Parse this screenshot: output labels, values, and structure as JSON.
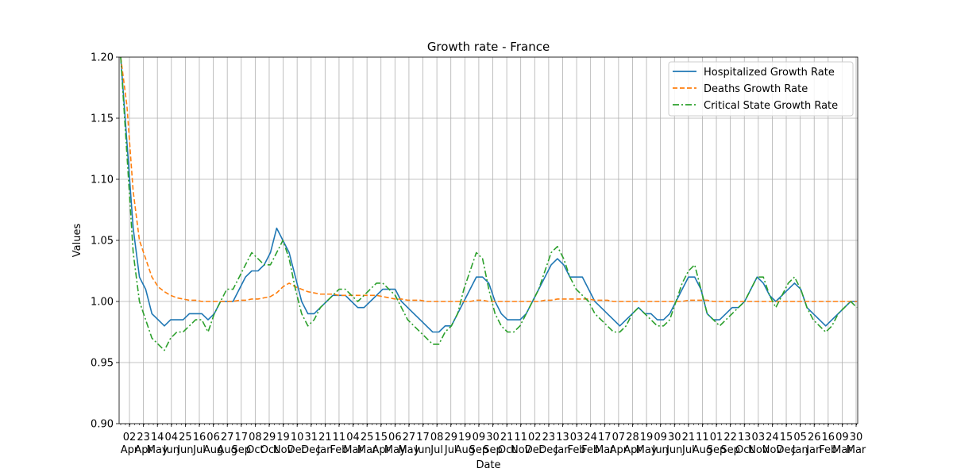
{
  "chart_data": {
    "type": "line",
    "title": "Growth rate - France",
    "xlabel": "Date",
    "ylabel": "Values",
    "ylim": [
      0.9,
      1.2
    ],
    "yticks": [
      "0.90",
      "0.95",
      "1.00",
      "1.05",
      "1.10",
      "1.15",
      "1.20"
    ],
    "grid": true,
    "legend_position": "top-right",
    "x_tick_labels": [
      {
        "day": "02",
        "month": "Apr"
      },
      {
        "day": "23",
        "month": "Apr"
      },
      {
        "day": "14",
        "month": "May"
      },
      {
        "day": "04",
        "month": "Jun"
      },
      {
        "day": "25",
        "month": "Jun"
      },
      {
        "day": "16",
        "month": "Jul"
      },
      {
        "day": "06",
        "month": "Aug"
      },
      {
        "day": "27",
        "month": "Aug"
      },
      {
        "day": "17",
        "month": "Sep"
      },
      {
        "day": "08",
        "month": "Oct"
      },
      {
        "day": "29",
        "month": "Oct"
      },
      {
        "day": "19",
        "month": "Nov"
      },
      {
        "day": "10",
        "month": "Dec"
      },
      {
        "day": "31",
        "month": "Dec"
      },
      {
        "day": "21",
        "month": "Jan"
      },
      {
        "day": "11",
        "month": "Feb"
      },
      {
        "day": "04",
        "month": "Mar"
      },
      {
        "day": "25",
        "month": "Mar"
      },
      {
        "day": "15",
        "month": "Apr"
      },
      {
        "day": "06",
        "month": "May"
      },
      {
        "day": "27",
        "month": "May"
      },
      {
        "day": "17",
        "month": "Jun"
      },
      {
        "day": "08",
        "month": "Jul"
      },
      {
        "day": "29",
        "month": "Jul"
      },
      {
        "day": "19",
        "month": "Aug"
      },
      {
        "day": "09",
        "month": "Sep"
      },
      {
        "day": "30",
        "month": "Sep"
      },
      {
        "day": "21",
        "month": "Oct"
      },
      {
        "day": "11",
        "month": "Nov"
      },
      {
        "day": "02",
        "month": "Dec"
      },
      {
        "day": "23",
        "month": "Dec"
      },
      {
        "day": "13",
        "month": "Jan"
      },
      {
        "day": "03",
        "month": "Feb"
      },
      {
        "day": "24",
        "month": "Feb"
      },
      {
        "day": "17",
        "month": "Mar"
      },
      {
        "day": "07",
        "month": "Apr"
      },
      {
        "day": "28",
        "month": "Apr"
      },
      {
        "day": "19",
        "month": "May"
      },
      {
        "day": "09",
        "month": "Jun"
      },
      {
        "day": "30",
        "month": "Jun"
      },
      {
        "day": "21",
        "month": "Jul"
      },
      {
        "day": "11",
        "month": "Aug"
      },
      {
        "day": "01",
        "month": "Sep"
      },
      {
        "day": "22",
        "month": "Sep"
      },
      {
        "day": "13",
        "month": "Oct"
      },
      {
        "day": "03",
        "month": "Nov"
      },
      {
        "day": "24",
        "month": "Nov"
      },
      {
        "day": "15",
        "month": "Dec"
      },
      {
        "day": "05",
        "month": "Jan"
      },
      {
        "day": "26",
        "month": "Jan"
      },
      {
        "day": "16",
        "month": "Feb"
      },
      {
        "day": "09",
        "month": "Mar"
      },
      {
        "day": "30",
        "month": "Mar"
      }
    ],
    "series": [
      {
        "name": "Hospitalized Growth Rate",
        "color": "#1f77b4",
        "dash": "solid",
        "values": [
          1.2,
          1.13,
          1.06,
          1.02,
          1.01,
          0.99,
          0.985,
          0.98,
          0.985,
          0.985,
          0.985,
          0.99,
          0.99,
          0.99,
          0.985,
          0.99,
          1.0,
          1.0,
          1.0,
          1.01,
          1.02,
          1.025,
          1.025,
          1.03,
          1.04,
          1.06,
          1.05,
          1.04,
          1.02,
          1.0,
          0.99,
          0.99,
          0.995,
          1.0,
          1.005,
          1.005,
          1.005,
          1.0,
          0.995,
          0.995,
          1.0,
          1.005,
          1.01,
          1.01,
          1.01,
          1.0,
          0.995,
          0.99,
          0.985,
          0.98,
          0.975,
          0.975,
          0.98,
          0.98,
          0.99,
          1.0,
          1.01,
          1.02,
          1.02,
          1.015,
          1.0,
          0.99,
          0.985,
          0.985,
          0.985,
          0.99,
          1.0,
          1.01,
          1.02,
          1.03,
          1.035,
          1.03,
          1.02,
          1.02,
          1.02,
          1.01,
          1.0,
          0.995,
          0.99,
          0.985,
          0.98,
          0.985,
          0.99,
          0.995,
          0.99,
          0.99,
          0.985,
          0.985,
          0.99,
          1.0,
          1.01,
          1.02,
          1.02,
          1.01,
          0.99,
          0.985,
          0.985,
          0.99,
          0.995,
          0.995,
          1.0,
          1.01,
          1.02,
          1.015,
          1.005,
          1.0,
          1.005,
          1.01,
          1.015,
          1.01,
          0.995,
          0.99,
          0.985,
          0.98,
          0.985,
          0.99,
          0.995,
          1.0,
          1.0
        ]
      },
      {
        "name": "Deaths Growth Rate",
        "color": "#ff7f0e",
        "dash": "dashed",
        "values": [
          1.2,
          1.16,
          1.09,
          1.05,
          1.035,
          1.02,
          1.012,
          1.008,
          1.005,
          1.003,
          1.002,
          1.001,
          1.001,
          1.0,
          1.0,
          1.0,
          1.0,
          1.0,
          1.0,
          1.001,
          1.001,
          1.002,
          1.002,
          1.003,
          1.004,
          1.007,
          1.012,
          1.015,
          1.012,
          1.01,
          1.008,
          1.007,
          1.006,
          1.006,
          1.006,
          1.005,
          1.005,
          1.005,
          1.005,
          1.005,
          1.005,
          1.005,
          1.004,
          1.003,
          1.002,
          1.002,
          1.001,
          1.001,
          1.001,
          1.0,
          1.0,
          1.0,
          1.0,
          1.0,
          1.0,
          1.0,
          1.0,
          1.001,
          1.001,
          1.0,
          1.0,
          1.0,
          1.0,
          1.0,
          1.0,
          1.0,
          1.0,
          1.0,
          1.001,
          1.001,
          1.002,
          1.002,
          1.002,
          1.002,
          1.002,
          1.002,
          1.001,
          1.001,
          1.001,
          1.0,
          1.0,
          1.0,
          1.0,
          1.0,
          1.0,
          1.0,
          1.0,
          1.0,
          1.0,
          1.0,
          1.0,
          1.001,
          1.001,
          1.001,
          1.001,
          1.0,
          1.0,
          1.0,
          1.0,
          1.0,
          1.0,
          1.0,
          1.0,
          1.0,
          1.0,
          1.0,
          1.0,
          1.0,
          1.0,
          1.0,
          1.0,
          1.0,
          1.0,
          1.0,
          1.0,
          1.0,
          1.0,
          1.0,
          1.0
        ]
      },
      {
        "name": "Critical State Growth Rate",
        "color": "#2ca02c",
        "dash": "dashdot",
        "values": [
          1.2,
          1.12,
          1.04,
          1.0,
          0.985,
          0.97,
          0.965,
          0.96,
          0.97,
          0.975,
          0.975,
          0.98,
          0.985,
          0.985,
          0.975,
          0.99,
          1.0,
          1.01,
          1.01,
          1.02,
          1.03,
          1.04,
          1.035,
          1.03,
          1.03,
          1.04,
          1.05,
          1.035,
          1.01,
          0.99,
          0.98,
          0.985,
          0.995,
          1.0,
          1.005,
          1.01,
          1.01,
          1.005,
          1.0,
          1.005,
          1.01,
          1.015,
          1.015,
          1.01,
          1.005,
          0.995,
          0.985,
          0.98,
          0.975,
          0.97,
          0.965,
          0.965,
          0.975,
          0.98,
          0.99,
          1.01,
          1.025,
          1.04,
          1.035,
          1.01,
          0.99,
          0.98,
          0.975,
          0.975,
          0.98,
          0.99,
          1.0,
          1.01,
          1.025,
          1.04,
          1.045,
          1.035,
          1.02,
          1.01,
          1.005,
          1.0,
          0.99,
          0.985,
          0.98,
          0.975,
          0.975,
          0.98,
          0.99,
          0.995,
          0.99,
          0.985,
          0.98,
          0.98,
          0.985,
          1.0,
          1.015,
          1.025,
          1.03,
          1.01,
          0.99,
          0.985,
          0.98,
          0.985,
          0.99,
          0.995,
          1.0,
          1.01,
          1.02,
          1.02,
          1.005,
          0.995,
          1.005,
          1.015,
          1.02,
          1.01,
          0.995,
          0.985,
          0.98,
          0.975,
          0.98,
          0.99,
          0.995,
          1.0,
          0.995
        ]
      }
    ]
  }
}
